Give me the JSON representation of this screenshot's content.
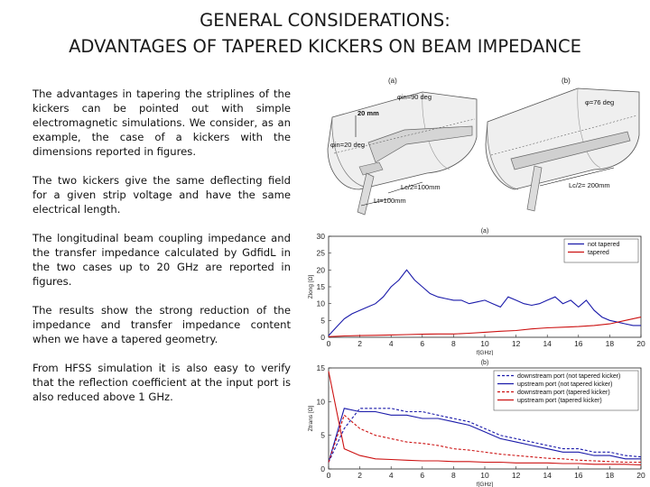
{
  "slide": {
    "title_line1": "GENERAL CONSIDERATIONS:",
    "title_line2": "ADVANTAGES OF TAPERED KICKERS ON BEAM IMPEDANCE",
    "paragraphs": [
      "The advantages in tapering the striplines of the kickers can be pointed out with simple electromagnetic simulations. We consider, as an example, the case of a kickers with the dimensions reported in figures.",
      "The two kickers give the same deflecting field for a given strip voltage and have the same electrical length.",
      "The longitudinal beam coupling impedance and the transfer impedance calculated by GdfidL in the two cases up to 20 GHz are reported in figures.",
      "The results show the strong reduction of the impedance and transfer impedance content when we have a tapered geometry.",
      "From HFSS simulation it is also easy to verify that the reflection coefficient at the input port is also reduced above 1 GHz."
    ]
  },
  "kicker_figures": {
    "a": {
      "label": "(a)",
      "labels": [
        "20 mm",
        "φin=90 deg",
        "φin=20 deg",
        "Lc/2=100mm",
        "Lt=100mm"
      ]
    },
    "b": {
      "label": "(b)",
      "labels": [
        "φ=76 deg",
        "Lc/2= 200mm"
      ]
    }
  },
  "colors": {
    "not_tapered": "#1a1aaa",
    "tapered": "#cc1111",
    "axis": "#222222"
  },
  "chart_data": [
    {
      "type": "line",
      "title": "(a)",
      "xlabel": "f[GHz]",
      "ylabel": "Zlong [Ω]",
      "xlim": [
        0,
        20
      ],
      "ylim": [
        0,
        30
      ],
      "xticks": [
        0,
        2,
        4,
        6,
        8,
        10,
        12,
        14,
        16,
        18,
        20
      ],
      "yticks": [
        0,
        5,
        10,
        15,
        20,
        25,
        30
      ],
      "legend": "top-right",
      "series": [
        {
          "name": "not tapered",
          "color": "#1a1aaa",
          "style": "solid",
          "x": [
            0,
            0.5,
            1,
            1.5,
            2,
            2.5,
            3,
            3.5,
            4,
            4.5,
            5,
            5.5,
            6,
            6.5,
            7,
            7.5,
            8,
            8.5,
            9,
            9.5,
            10,
            10.5,
            11,
            11.5,
            12,
            12.5,
            13,
            13.5,
            14,
            14.5,
            15,
            15.5,
            16,
            16.5,
            17,
            17.5,
            18,
            18.5,
            19,
            19.5,
            20
          ],
          "y": [
            0.5,
            3,
            5.5,
            7,
            8,
            9,
            10,
            12,
            15,
            17,
            20,
            17,
            15,
            13,
            12,
            11.5,
            11,
            11,
            10,
            10.5,
            11,
            10,
            9,
            12,
            11,
            10,
            9.5,
            10,
            11,
            12,
            10,
            11,
            9,
            11,
            8,
            6,
            5,
            4.5,
            4,
            3.5,
            3.5
          ]
        },
        {
          "name": "tapered",
          "color": "#cc1111",
          "style": "solid",
          "x": [
            0,
            1,
            2,
            3,
            4,
            5,
            6,
            7,
            8,
            9,
            10,
            11,
            12,
            13,
            14,
            15,
            16,
            17,
            18,
            19,
            20
          ],
          "y": [
            0.2,
            0.4,
            0.5,
            0.6,
            0.7,
            0.8,
            0.9,
            1,
            1,
            1.2,
            1.5,
            1.8,
            2,
            2.5,
            2.8,
            3,
            3.2,
            3.5,
            4,
            5,
            6
          ]
        }
      ]
    },
    {
      "type": "line",
      "title": "(b)",
      "xlabel": "f[GHz]",
      "ylabel": "Ztrans [Ω]",
      "xlim": [
        0,
        20
      ],
      "ylim": [
        0,
        15
      ],
      "xticks": [
        0,
        2,
        4,
        6,
        8,
        10,
        12,
        14,
        16,
        18,
        20
      ],
      "yticks": [
        0,
        5,
        10,
        15
      ],
      "legend": "top-right",
      "series": [
        {
          "name": "downstream port (not tapered kicker)",
          "color": "#1a1aaa",
          "style": "dashed",
          "x": [
            0,
            1,
            2,
            3,
            4,
            5,
            6,
            7,
            8,
            9,
            10,
            11,
            12,
            13,
            14,
            15,
            16,
            17,
            18,
            19,
            20
          ],
          "y": [
            1,
            6,
            9,
            9,
            9,
            8.5,
            8.5,
            8,
            7.5,
            7,
            6,
            5,
            4.5,
            4,
            3.5,
            3,
            3,
            2.5,
            2.5,
            2,
            1.8
          ]
        },
        {
          "name": "upstream port (not tapered kicker)",
          "color": "#1a1aaa",
          "style": "solid",
          "x": [
            0,
            1,
            2,
            3,
            4,
            5,
            6,
            7,
            8,
            9,
            10,
            11,
            12,
            13,
            14,
            15,
            16,
            17,
            18,
            19,
            20
          ],
          "y": [
            1,
            9,
            8.5,
            8.5,
            8,
            8,
            7.5,
            7.5,
            7,
            6.5,
            5.5,
            4.5,
            4,
            3.5,
            3,
            2.5,
            2.5,
            2,
            2,
            1.5,
            1.5
          ]
        },
        {
          "name": "downstream port (tapered kicker)",
          "color": "#cc1111",
          "style": "dashed",
          "x": [
            0,
            1,
            2,
            3,
            4,
            5,
            6,
            7,
            8,
            9,
            10,
            11,
            12,
            13,
            14,
            15,
            16,
            17,
            18,
            19,
            20
          ],
          "y": [
            1,
            8,
            6,
            5,
            4.5,
            4,
            3.8,
            3.5,
            3,
            2.8,
            2.5,
            2.2,
            2,
            1.8,
            1.6,
            1.5,
            1.3,
            1.2,
            1.1,
            1,
            1
          ]
        },
        {
          "name": "upstream port (tapered kicker)",
          "color": "#cc1111",
          "style": "solid",
          "x": [
            0,
            1,
            2,
            3,
            4,
            5,
            6,
            7,
            8,
            9,
            10,
            11,
            12,
            13,
            14,
            15,
            16,
            17,
            18,
            19,
            20
          ],
          "y": [
            14.5,
            3,
            2,
            1.5,
            1.4,
            1.3,
            1.2,
            1.2,
            1.1,
            1.1,
            1,
            1,
            0.9,
            0.9,
            0.9,
            0.8,
            0.8,
            0.7,
            0.7,
            0.7,
            0.6
          ]
        }
      ]
    }
  ]
}
